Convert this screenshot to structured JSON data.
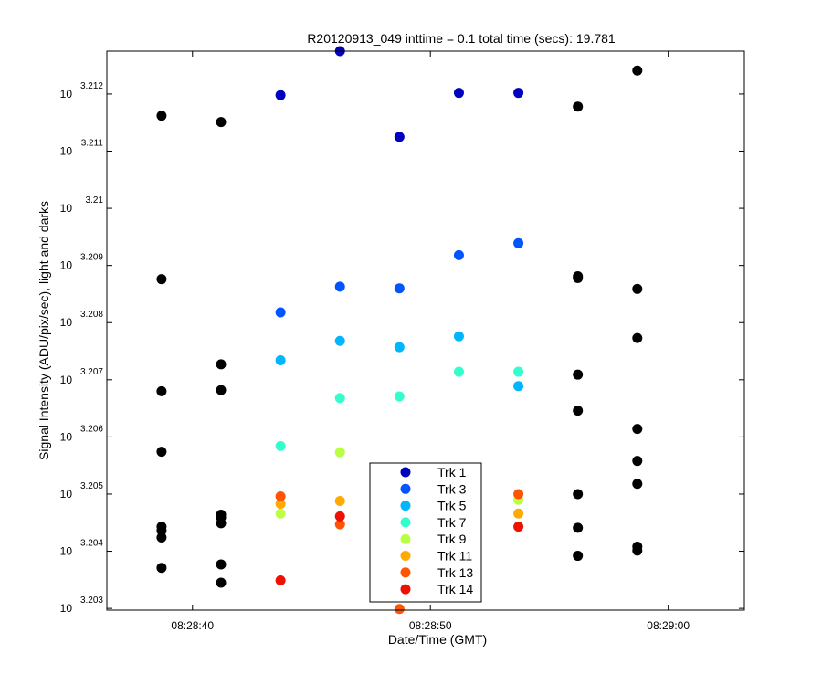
{
  "chart_data": {
    "type": "scatter",
    "title": "R20120913_049 inttime = 0.1 total time (secs): 19.781",
    "xlabel": "Date/Time (GMT)",
    "ylabel": "Signal Intensity (ADU/pix/sec), light and darks",
    "y_scale": "log",
    "x_tick_labels": [
      "08:28:40",
      "08:28:50",
      "08:29:00"
    ],
    "x_ticks_seconds_after_08_28_00": [
      40,
      50,
      60
    ],
    "xlim_seconds_after_08_28_00": [
      36.4,
      63.2
    ],
    "y_tick_exponents": [
      "3.203",
      "3.204",
      "3.205",
      "3.206",
      "3.207",
      "3.208",
      "3.209",
      "3.21",
      "3.211",
      "3.212"
    ],
    "y_tick_base": "10",
    "ylim_exponent": [
      3.20297,
      3.21275
    ],
    "grid": false,
    "legend_position": "bottom-center",
    "series": [
      {
        "name": "Trk 1",
        "color": "#0000bf",
        "points": [
          [
            46.2,
            3.21275
          ],
          [
            48.7,
            3.21125
          ],
          [
            51.2,
            3.21202
          ],
          [
            53.7,
            3.21202
          ],
          [
            43.7,
            3.21198
          ]
        ]
      },
      {
        "name": "Trk 3",
        "color": "#0055ff",
        "points": [
          [
            43.7,
            3.20818
          ],
          [
            46.2,
            3.20863
          ],
          [
            48.7,
            3.2086
          ],
          [
            51.2,
            3.20918
          ],
          [
            53.7,
            3.20939
          ]
        ]
      },
      {
        "name": "Trk 5",
        "color": "#00b7ff",
        "points": [
          [
            43.7,
            3.20734
          ],
          [
            46.2,
            3.20768
          ],
          [
            48.7,
            3.20757
          ],
          [
            51.2,
            3.20776
          ],
          [
            53.7,
            3.20689
          ]
        ]
      },
      {
        "name": "Trk 7",
        "color": "#33ffcc",
        "points": [
          [
            43.7,
            3.20584
          ],
          [
            46.2,
            3.20668
          ],
          [
            48.7,
            3.20671
          ],
          [
            51.2,
            3.20714
          ],
          [
            53.7,
            3.20714
          ]
        ]
      },
      {
        "name": "Trk 9",
        "color": "#bbff44",
        "points": [
          [
            43.7,
            3.20466
          ],
          [
            46.2,
            3.20573
          ],
          [
            53.7,
            3.2049
          ]
        ]
      },
      {
        "name": "Trk 11",
        "color": "#ffaa00",
        "points": [
          [
            43.7,
            3.20483
          ],
          [
            46.2,
            3.20488
          ],
          [
            53.7,
            3.20466
          ]
        ]
      },
      {
        "name": "Trk 13",
        "color": "#ff5500",
        "points": [
          [
            43.7,
            3.20496
          ],
          [
            46.2,
            3.20447
          ],
          [
            48.7,
            3.20299
          ],
          [
            53.7,
            3.205
          ]
        ]
      },
      {
        "name": "Trk 14",
        "color": "#ee1100",
        "points": [
          [
            43.7,
            3.20349
          ],
          [
            46.2,
            3.20461
          ],
          [
            53.7,
            3.20443
          ]
        ]
      }
    ],
    "dark_points": {
      "color": "#000000",
      "points": [
        [
          38.7,
          3.21162
        ],
        [
          38.7,
          3.20876
        ],
        [
          38.7,
          3.2068
        ],
        [
          38.7,
          3.20574
        ],
        [
          38.7,
          3.20443
        ],
        [
          38.7,
          3.20436
        ],
        [
          38.7,
          3.20424
        ],
        [
          38.7,
          3.20371
        ],
        [
          41.2,
          3.21151
        ],
        [
          41.2,
          3.20727
        ],
        [
          41.2,
          3.20682
        ],
        [
          41.2,
          3.20464
        ],
        [
          41.2,
          3.20459
        ],
        [
          41.2,
          3.20449
        ],
        [
          41.2,
          3.20377
        ],
        [
          41.2,
          3.20345
        ],
        [
          56.2,
          3.21178
        ],
        [
          56.2,
          3.20881
        ],
        [
          56.2,
          3.20878
        ],
        [
          56.2,
          3.20709
        ],
        [
          56.2,
          3.20646
        ],
        [
          56.2,
          3.205
        ],
        [
          56.2,
          3.20441
        ],
        [
          56.2,
          3.20392
        ],
        [
          58.7,
          3.21241
        ],
        [
          58.7,
          3.20859
        ],
        [
          58.7,
          3.20773
        ],
        [
          58.7,
          3.20614
        ],
        [
          58.7,
          3.20558
        ],
        [
          58.7,
          3.20518
        ],
        [
          58.7,
          3.20408
        ],
        [
          58.7,
          3.20401
        ]
      ]
    }
  }
}
